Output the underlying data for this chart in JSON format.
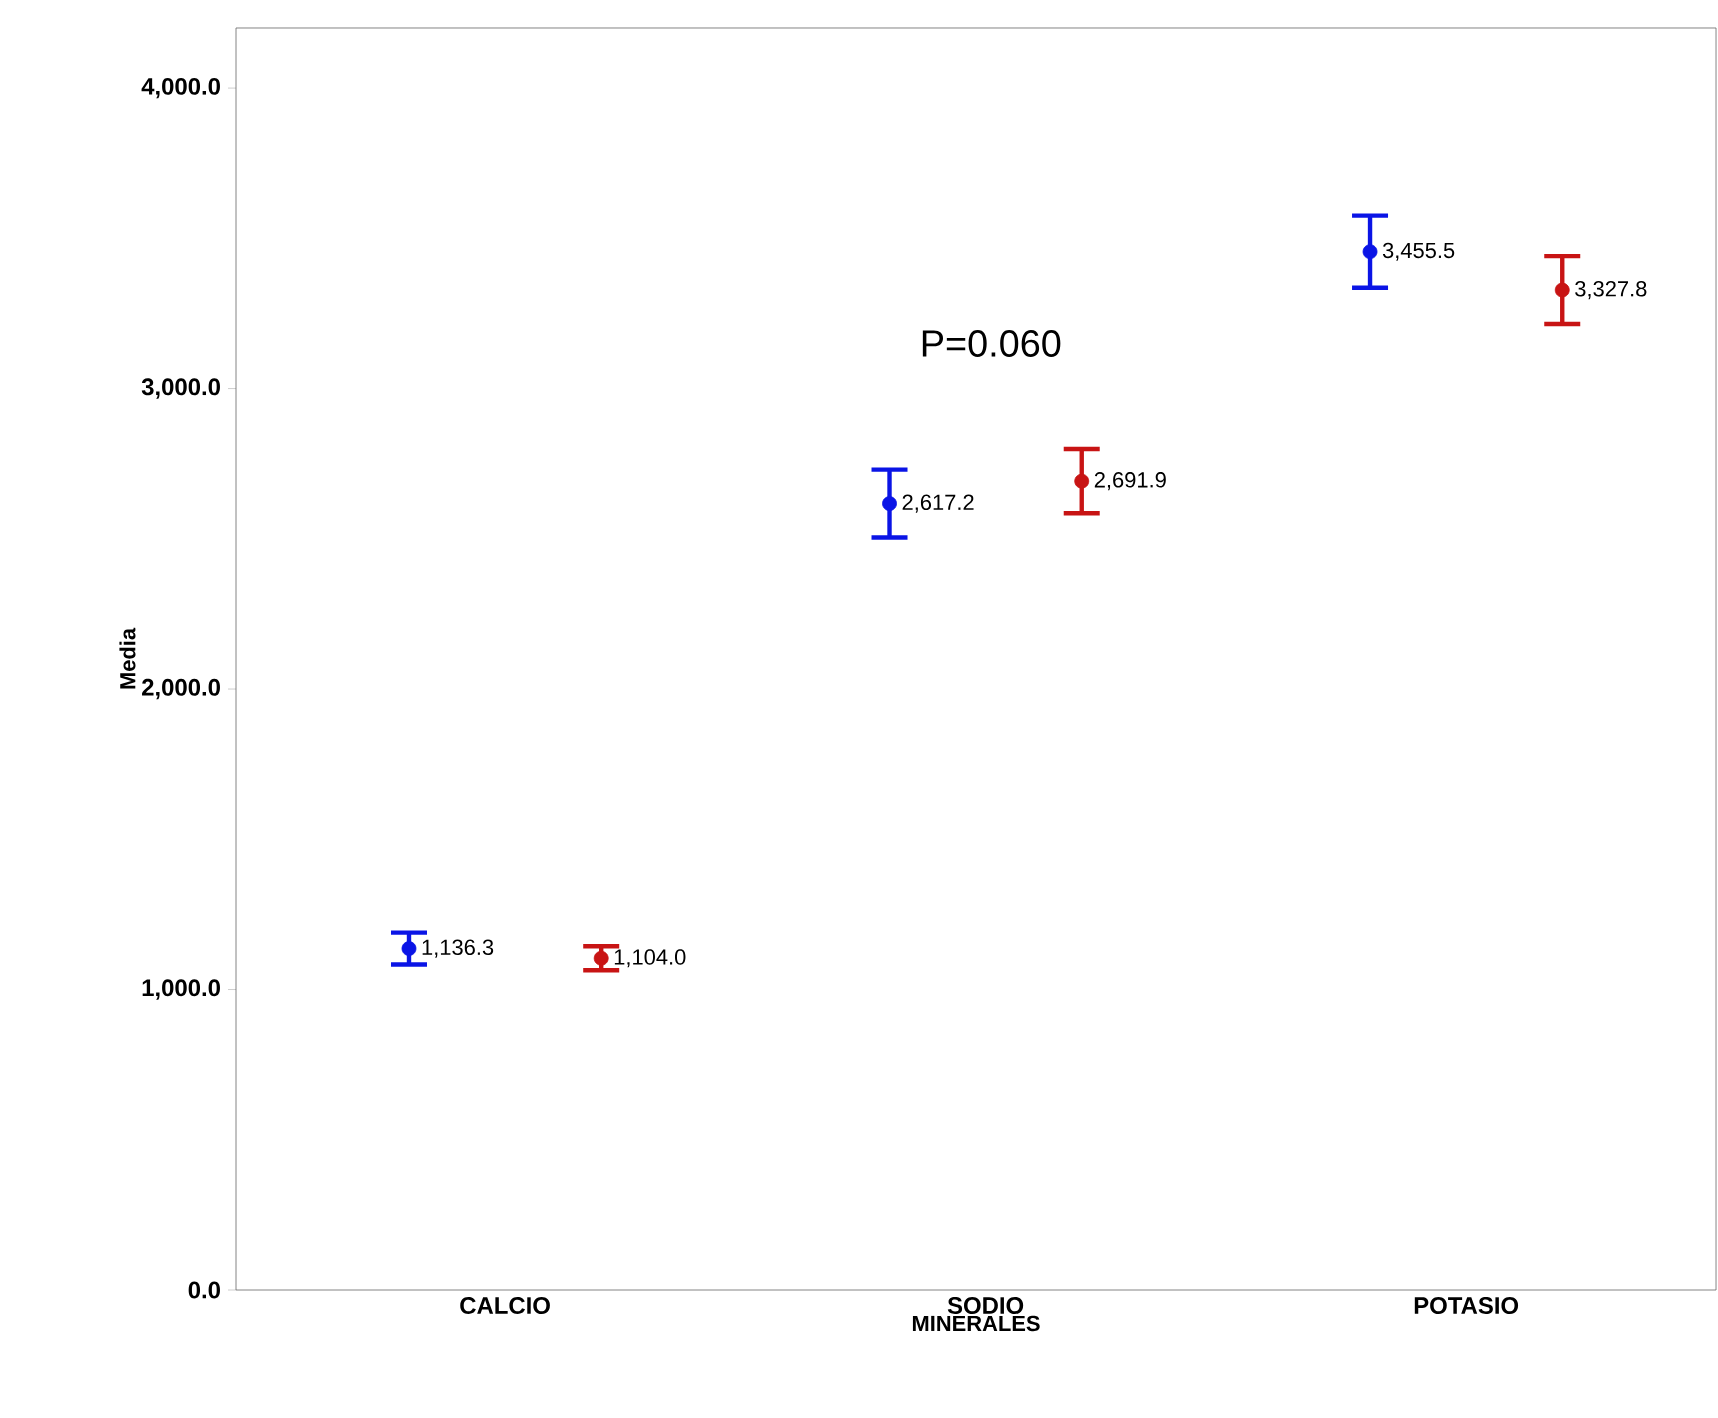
{
  "chart_data": {
    "type": "scatter",
    "xlabel": "MINERALES",
    "ylabel": "Media",
    "categories": [
      "CALCIO",
      "SODIO",
      "POTASIO"
    ],
    "series": [
      {
        "color": "#0a14e6",
        "values": [
          1136.3,
          2617.2,
          3455.5
        ],
        "errors": [
          53,
          113,
          120
        ],
        "value_labels": [
          "1,136.3",
          "2,617.2",
          "3,455.5"
        ]
      },
      {
        "color": "#c81414",
        "values": [
          1104.0,
          2691.9,
          3327.8
        ],
        "errors": [
          40,
          107,
          113
        ],
        "value_labels": [
          "1,104.0",
          "2,691.9",
          "3,327.8"
        ]
      }
    ],
    "ylim": [
      0,
      4200
    ],
    "yticks": [
      {
        "value": 0,
        "label": "0.0"
      },
      {
        "value": 1000,
        "label": "1,000.0"
      },
      {
        "value": 2000,
        "label": "2,000.0"
      },
      {
        "value": 3000,
        "label": "3,000.0"
      },
      {
        "value": 4000,
        "label": "4,000.0"
      }
    ],
    "annotations": [
      "P=0.060"
    ],
    "marker": "circle",
    "grid": false
  }
}
